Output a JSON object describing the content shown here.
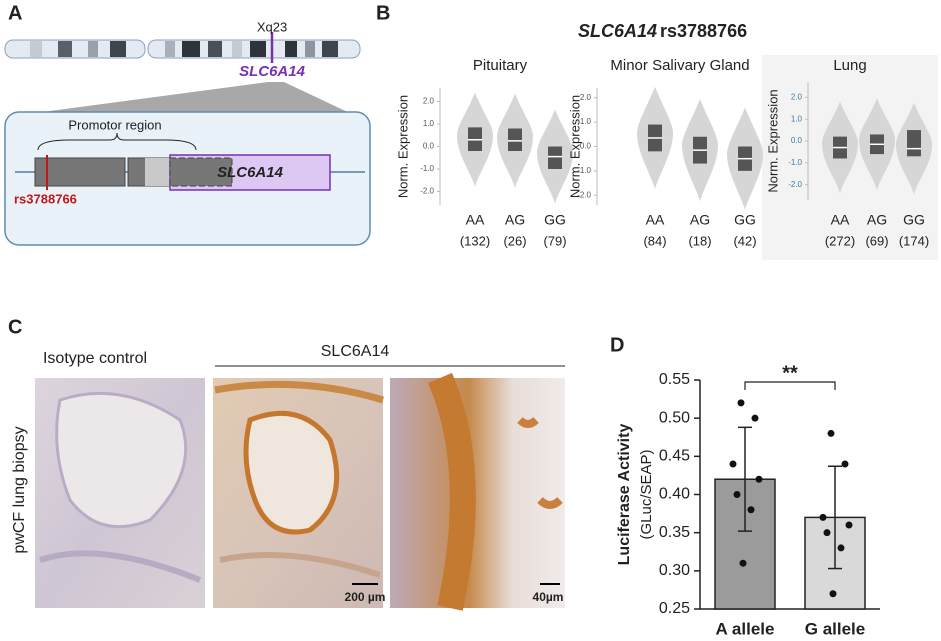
{
  "panel_labels": [
    "A",
    "B",
    "C",
    "D"
  ],
  "panel_a": {
    "band": "Xq23",
    "gene": "SLC6A14",
    "region": "Promotor region",
    "gene_box": "SLC6A14",
    "snp": "rs3788766"
  },
  "panel_b": {
    "title_gene": "SLC6A14",
    "title_snp": "rs3788766",
    "y_label": "Norm. Expression",
    "genotypes": [
      "AA",
      "AG",
      "GG"
    ],
    "plots": [
      {
        "tissue": "Pituitary",
        "n_labels": [
          "(132)",
          "(26)",
          "(79)"
        ],
        "ylim": [
          -2.6,
          2.6
        ],
        "yticks": [
          {
            "value": 2,
            "label": "2.0"
          },
          {
            "value": 1,
            "label": "1.0"
          },
          {
            "value": 0,
            "label": "0.0"
          },
          {
            "value": -1,
            "label": "-1.0"
          },
          {
            "value": -2,
            "label": "-2.0"
          }
        ],
        "boxes": [
          [
            0.85,
            0.3,
            -0.2
          ],
          [
            0.8,
            0.25,
            -0.2
          ],
          [
            0.0,
            -0.45,
            -1.0
          ]
        ]
      },
      {
        "tissue": "Minor Salivary Gland",
        "n_labels": [
          "(84)",
          "(18)",
          "(42)"
        ],
        "ylim": [
          -2.4,
          2.4
        ],
        "yticks": [
          {
            "value": 2,
            "label": "2.0"
          },
          {
            "value": 1,
            "label": "1.0"
          },
          {
            "value": 0,
            "label": "0.0"
          },
          {
            "value": -1,
            "label": "-1.0"
          },
          {
            "value": -2,
            "label": "-2.0"
          }
        ],
        "boxes": [
          [
            0.9,
            0.35,
            -0.2
          ],
          [
            0.4,
            -0.15,
            -0.7
          ],
          [
            0.0,
            -0.5,
            -1.0
          ]
        ]
      },
      {
        "tissue": "Lung",
        "n_labels": [
          "(272)",
          "(69)",
          "(174)"
        ],
        "ylim": [
          -2.7,
          2.7
        ],
        "yticks": [
          {
            "value": 2,
            "label": "2.0"
          },
          {
            "value": 1,
            "label": "1.0"
          },
          {
            "value": 0,
            "label": "0.0"
          },
          {
            "value": -1,
            "label": "-1.0"
          },
          {
            "value": -2,
            "label": "-2.0"
          }
        ],
        "boxes": [
          [
            0.2,
            -0.3,
            -0.8
          ],
          [
            0.3,
            -0.15,
            -0.6
          ],
          [
            0.5,
            -0.35,
            -0.7
          ]
        ]
      }
    ]
  },
  "panel_c": {
    "control": "Isotype control",
    "stain": "SLC6A14",
    "row_label": "pwCF lung biopsy",
    "scale_bars": [
      "200 µm",
      "40µm"
    ]
  },
  "chart_data": {
    "type": "bar",
    "y_label": "Luciferase Activity",
    "y_sublabel": "(GLuc/SEAP)",
    "categories": [
      "A allele",
      "G allele"
    ],
    "values": [
      0.42,
      0.37
    ],
    "errors": [
      0.068,
      0.067
    ],
    "colors": [
      "#9b9b9b",
      "#d9d9d9"
    ],
    "points": [
      [
        0.52,
        0.5,
        0.44,
        0.42,
        0.4,
        0.38,
        0.31
      ],
      [
        0.48,
        0.44,
        0.37,
        0.36,
        0.35,
        0.33,
        0.27
      ]
    ],
    "significance": "**",
    "ylim": [
      0.25,
      0.55
    ],
    "yticks": [
      0.25,
      {
        "value": 0.3,
        "label": "0.30"
      },
      0.35,
      {
        "value": 0.4,
        "label": "0.40"
      },
      0.45,
      {
        "value": 0.5,
        "label": "0.50"
      },
      0.55
    ]
  }
}
